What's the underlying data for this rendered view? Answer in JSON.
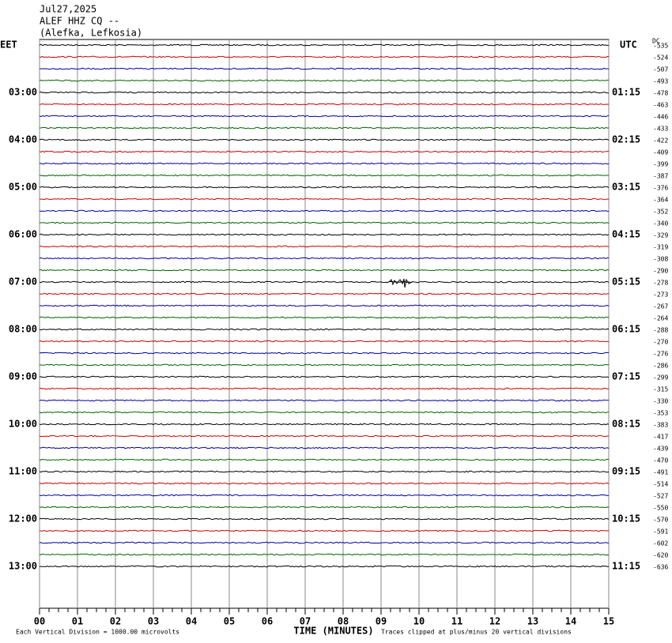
{
  "chart_data": {
    "type": "seismogram",
    "date": "Jul27,2025",
    "station": "ALEF HHZ CQ --",
    "location": "(Alefka, Lefkosia)",
    "left_zone": "EET",
    "right_zone": "UTC",
    "dc_label": "DC",
    "xlabel": "TIME (MINUTES)",
    "scale_note": "Each Vertical Division = 1000.00 microvolts",
    "clip_note": "Traces clipped at plus/minus 20 vertical divisions",
    "xlim": [
      0,
      15
    ],
    "xticks": [
      {
        "value": 0,
        "label": "00"
      },
      {
        "value": 1,
        "label": "01"
      },
      {
        "value": 2,
        "label": "02"
      },
      {
        "value": 3,
        "label": "03"
      },
      {
        "value": 4,
        "label": "04"
      },
      {
        "value": 5,
        "label": "05"
      },
      {
        "value": 6,
        "label": "06"
      },
      {
        "value": 7,
        "label": "07"
      },
      {
        "value": 8,
        "label": "08"
      },
      {
        "value": 9,
        "label": "09"
      },
      {
        "value": 10,
        "label": "10"
      },
      {
        "value": 11,
        "label": "11"
      },
      {
        "value": 12,
        "label": "12"
      },
      {
        "value": 13,
        "label": "13"
      },
      {
        "value": 14,
        "label": "14"
      },
      {
        "value": 15,
        "label": "15"
      }
    ],
    "trace_colors": [
      "#000000",
      "#d00000",
      "#0000a0",
      "#006400"
    ],
    "left_labels": [
      "03:00",
      "04:00",
      "05:00",
      "06:00",
      "07:00",
      "08:00",
      "09:00",
      "10:00",
      "11:00",
      "12:00",
      "13:00"
    ],
    "right_labels": [
      "01:15",
      "02:15",
      "03:15",
      "04:15",
      "05:15",
      "06:15",
      "07:15",
      "08:15",
      "09:15",
      "10:15",
      "11:15"
    ],
    "dc_values": [
      -535,
      -524,
      -507,
      -493,
      -478,
      -463,
      -446,
      -433,
      -422,
      -409,
      -399,
      -387,
      -376,
      -364,
      -352,
      -340,
      -329,
      -319,
      -308,
      -290,
      -278,
      -273,
      -267,
      -264,
      -288,
      -270,
      -276,
      -286,
      -299,
      -315,
      -330,
      -353,
      -383,
      -417,
      -439,
      -470,
      -491,
      -514,
      -527,
      -550,
      -570,
      -591,
      -602,
      -620,
      -636
    ]
  }
}
